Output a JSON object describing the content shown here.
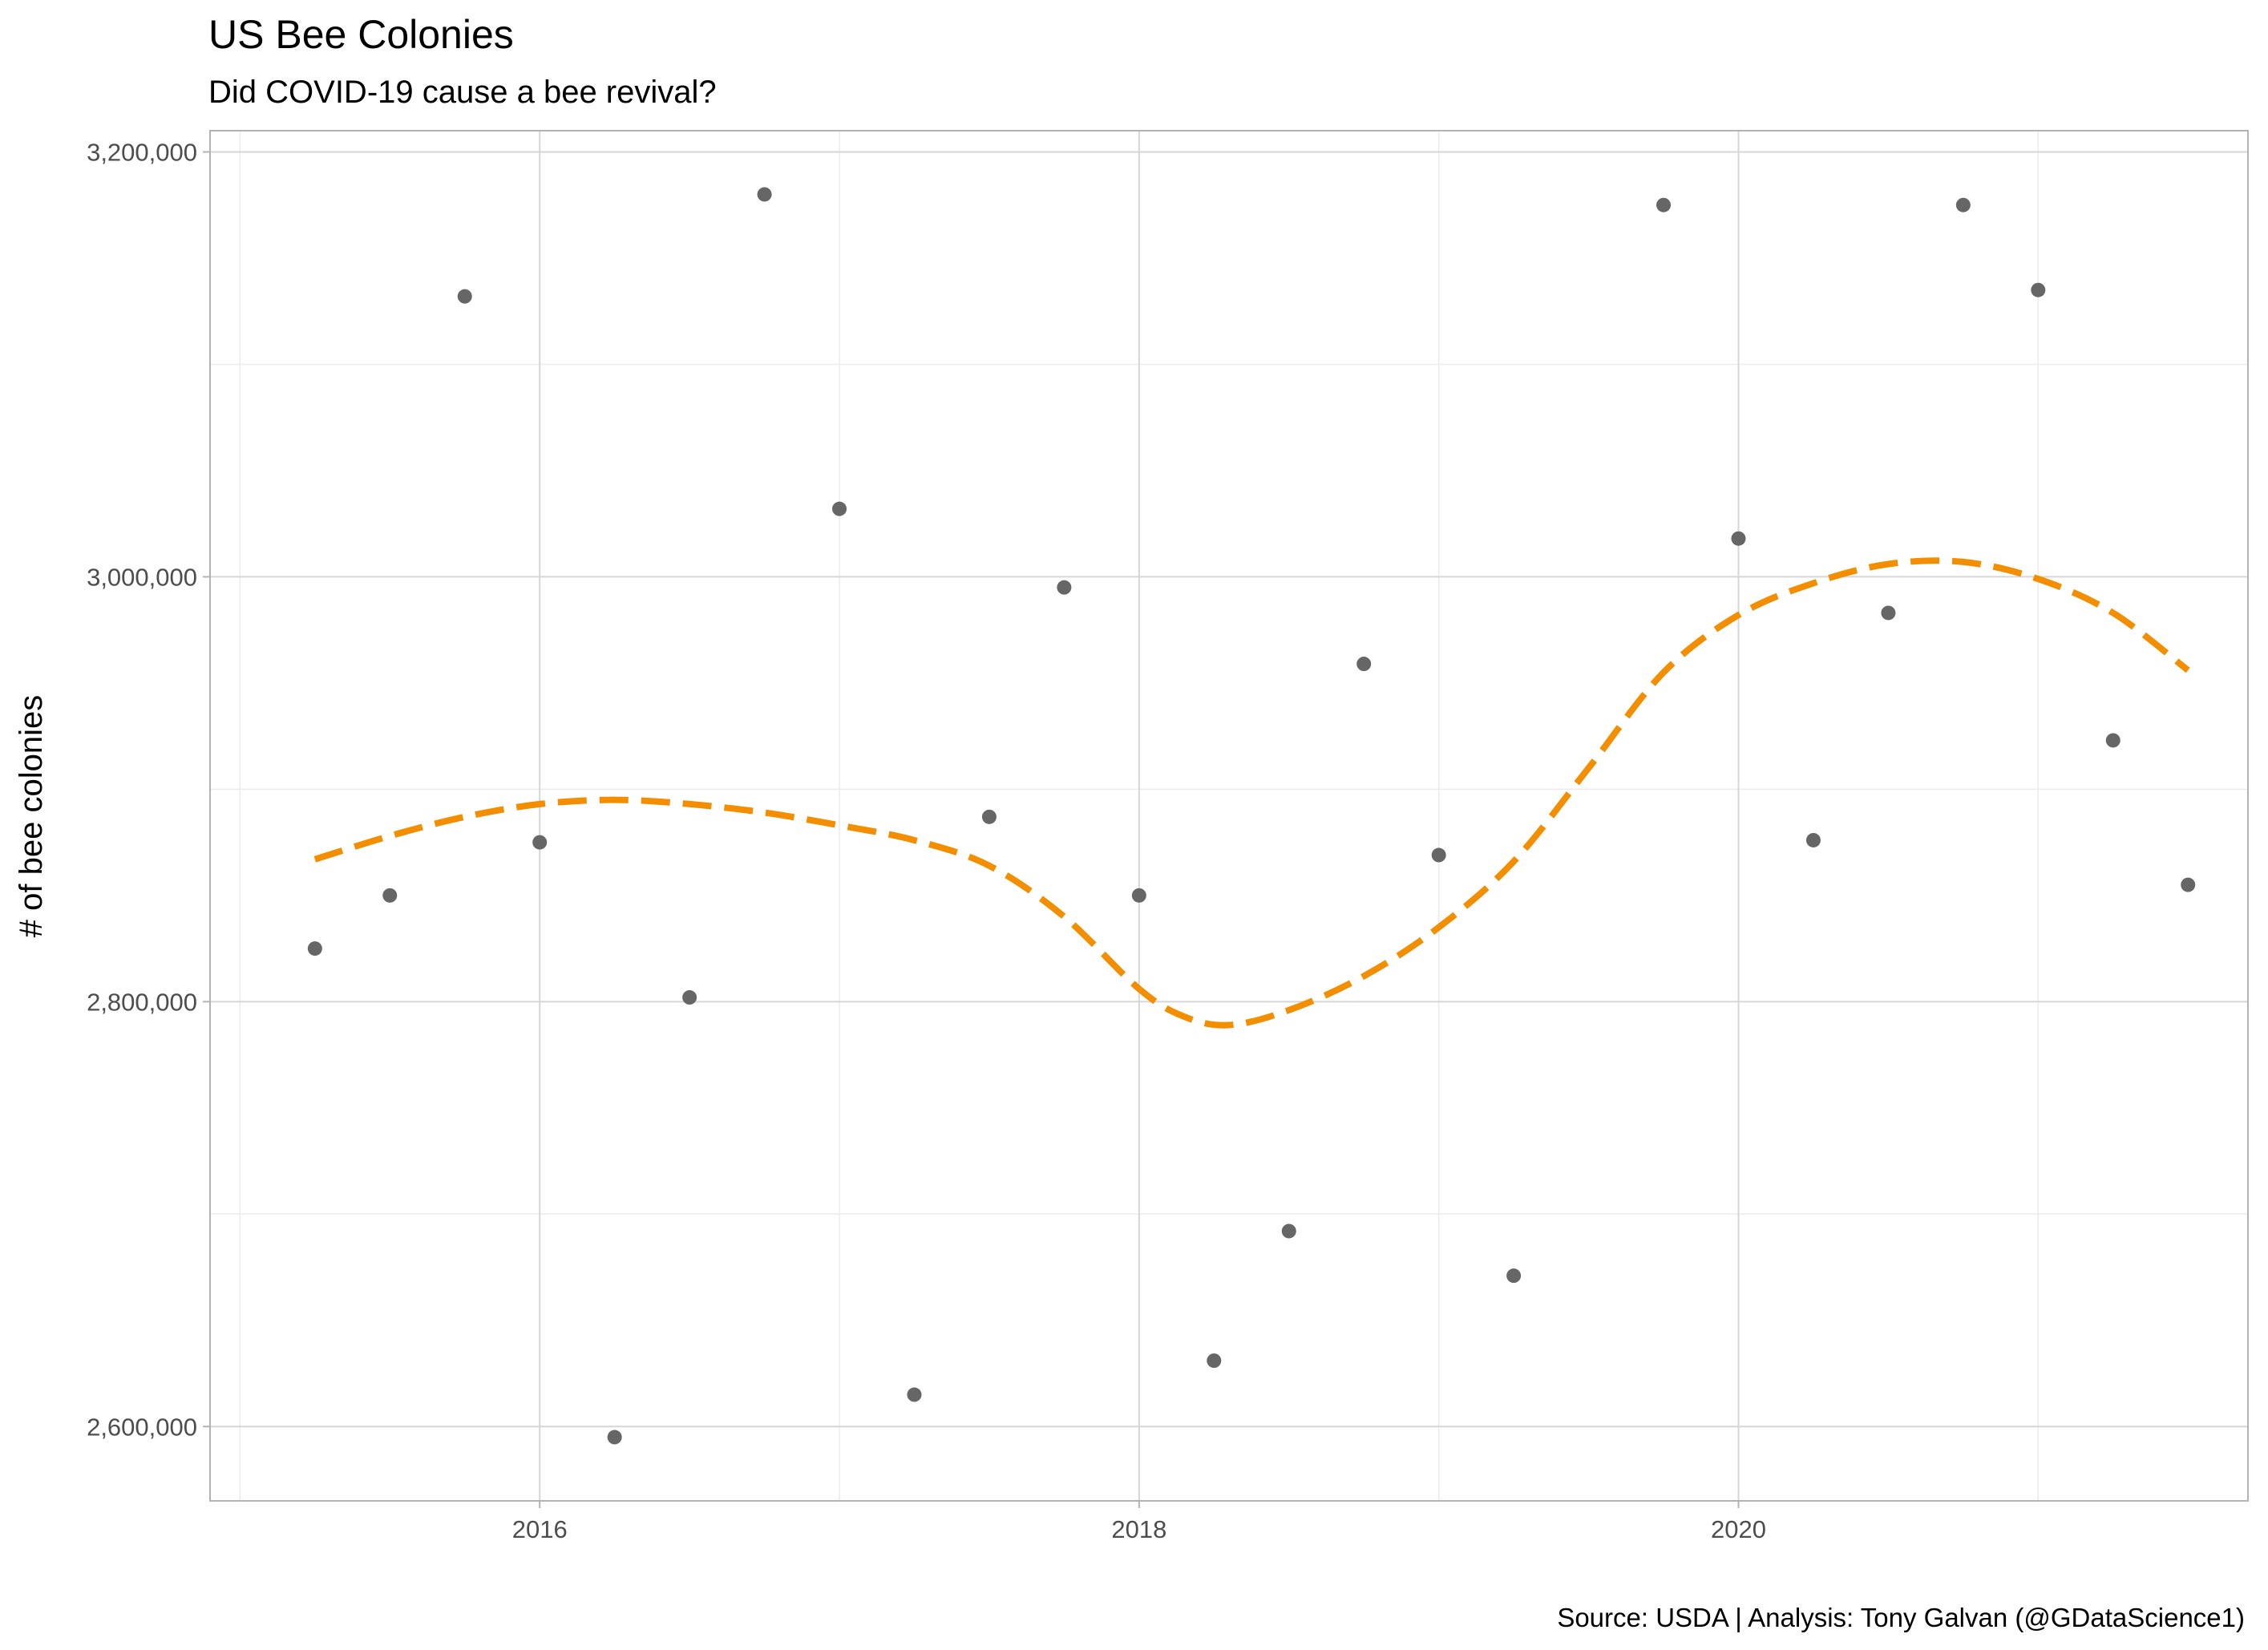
{
  "chart_data": {
    "type": "scatter",
    "title": "US Bee Colonies",
    "subtitle": "Did COVID-19 cause a bee revival?",
    "caption": "Source: USDA  |  Analysis: Tony Galvan (@GDataScience1)",
    "xlabel": "",
    "ylabel": "# of bee colonies",
    "xlim": [
      2014.9,
      2021.7
    ],
    "ylim": [
      2565000,
      3210000
    ],
    "x_ticks": [
      2016,
      2018,
      2020
    ],
    "x_tick_labels": [
      "2016",
      "2018",
      "2020"
    ],
    "y_ticks": [
      2600000,
      2800000,
      3000000,
      3200000
    ],
    "y_tick_labels": [
      "2,600,000",
      "2,800,000",
      "3,000,000",
      "3,200,000"
    ],
    "grid": true,
    "series": [
      {
        "type": "scatter",
        "color": "#666666",
        "points": [
          [
            2015.25,
            2825000
          ],
          [
            2015.5,
            2850000
          ],
          [
            2015.75,
            3132000
          ],
          [
            2016.0,
            2875000
          ],
          [
            2016.25,
            2595000
          ],
          [
            2016.5,
            2802000
          ],
          [
            2016.75,
            3180000
          ],
          [
            2017.0,
            3032000
          ],
          [
            2017.25,
            2615000
          ],
          [
            2017.5,
            2887000
          ],
          [
            2017.75,
            2995000
          ],
          [
            2018.0,
            2850000
          ],
          [
            2018.25,
            2631000
          ],
          [
            2018.5,
            2692000
          ],
          [
            2018.75,
            2959000
          ],
          [
            2019.0,
            2869000
          ],
          [
            2019.25,
            2671000
          ],
          [
            2019.75,
            3175000
          ],
          [
            2020.0,
            3018000
          ],
          [
            2020.25,
            2876000
          ],
          [
            2020.5,
            2983000
          ],
          [
            2020.75,
            3175000
          ],
          [
            2021.0,
            3135000
          ],
          [
            2021.25,
            2923000
          ],
          [
            2021.5,
            2855000
          ]
        ]
      },
      {
        "type": "line",
        "style": "dashed",
        "color": "#f28e00",
        "points": [
          [
            2015.25,
            2867000
          ],
          [
            2015.5,
            2878000
          ],
          [
            2015.75,
            2887000
          ],
          [
            2016.0,
            2893000
          ],
          [
            2016.25,
            2895000
          ],
          [
            2016.5,
            2893000
          ],
          [
            2016.75,
            2889000
          ],
          [
            2017.0,
            2883000
          ],
          [
            2017.25,
            2876000
          ],
          [
            2017.5,
            2864000
          ],
          [
            2017.75,
            2840000
          ],
          [
            2018.0,
            2806000
          ],
          [
            2018.15,
            2793000
          ],
          [
            2018.3,
            2789000
          ],
          [
            2018.5,
            2796000
          ],
          [
            2018.75,
            2812000
          ],
          [
            2019.0,
            2835000
          ],
          [
            2019.25,
            2866000
          ],
          [
            2019.5,
            2910000
          ],
          [
            2019.75,
            2955000
          ],
          [
            2020.0,
            2982000
          ],
          [
            2020.25,
            2997000
          ],
          [
            2020.5,
            3006000
          ],
          [
            2020.75,
            3007000
          ],
          [
            2021.0,
            2999000
          ],
          [
            2021.25,
            2983000
          ],
          [
            2021.5,
            2956000
          ]
        ]
      }
    ]
  }
}
